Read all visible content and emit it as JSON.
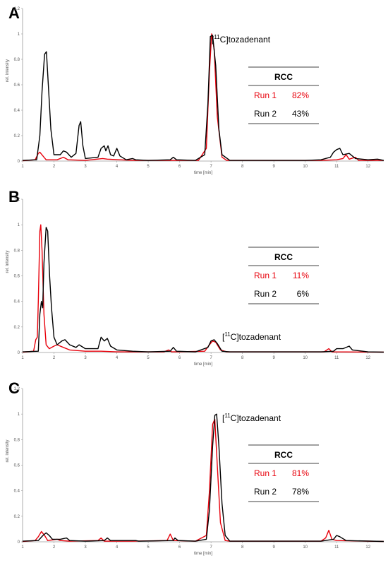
{
  "colors": {
    "run1": "#e8000b",
    "run2": "#000000",
    "axis": "#9a9a9a"
  },
  "chart_data": [
    {
      "type": "line",
      "panel": "A",
      "xlabel": "time [min]",
      "ylabel": "rel. intensity",
      "xlim": [
        1,
        12.5
      ],
      "ylim": [
        0,
        1.2
      ],
      "xticks": [
        1,
        2,
        3,
        4,
        5,
        6,
        7,
        8,
        9,
        10,
        11,
        12
      ],
      "yticks": [
        0,
        0.2,
        0.4,
        0.6,
        0.8,
        1,
        1.2
      ],
      "annotation": {
        "pre": "[",
        "sup": "11",
        "post": "C]tozadenant"
      },
      "table": {
        "header": "RCC",
        "rows": [
          {
            "label": "Run 1",
            "value": "82%"
          },
          {
            "label": "Run 2",
            "value": "43%"
          }
        ]
      },
      "series": [
        {
          "points": [
            [
              1,
              0.003
            ],
            [
              1.4,
              0.01
            ],
            [
              1.5,
              0.06
            ],
            [
              1.55,
              0.07
            ],
            [
              1.65,
              0.04
            ],
            [
              1.75,
              0.01
            ],
            [
              2.1,
              0.01
            ],
            [
              2.3,
              0.03
            ],
            [
              2.45,
              0.01
            ],
            [
              3.0,
              0.005
            ],
            [
              3.55,
              0.02
            ],
            [
              3.7,
              0.015
            ],
            [
              4.5,
              0.005
            ],
            [
              5.0,
              0.005
            ],
            [
              6.6,
              0.005
            ],
            [
              6.85,
              0.1
            ],
            [
              6.95,
              0.7
            ],
            [
              7.02,
              1.0
            ],
            [
              7.1,
              0.88
            ],
            [
              7.2,
              0.35
            ],
            [
              7.35,
              0.03
            ],
            [
              7.5,
              0.005
            ],
            [
              10.5,
              0.005
            ],
            [
              11.0,
              0.01
            ],
            [
              11.2,
              0.02
            ],
            [
              11.3,
              0.05
            ],
            [
              11.4,
              0.015
            ],
            [
              11.6,
              0.03
            ],
            [
              11.7,
              0.005
            ],
            [
              12.5,
              0.005
            ]
          ]
        },
        {
          "points": [
            [
              1,
              0.005
            ],
            [
              1.45,
              0.01
            ],
            [
              1.55,
              0.2
            ],
            [
              1.62,
              0.55
            ],
            [
              1.7,
              0.84
            ],
            [
              1.76,
              0.86
            ],
            [
              1.82,
              0.6
            ],
            [
              1.9,
              0.25
            ],
            [
              2.0,
              0.05
            ],
            [
              2.2,
              0.05
            ],
            [
              2.3,
              0.08
            ],
            [
              2.4,
              0.07
            ],
            [
              2.55,
              0.03
            ],
            [
              2.7,
              0.06
            ],
            [
              2.8,
              0.28
            ],
            [
              2.85,
              0.31
            ],
            [
              2.92,
              0.12
            ],
            [
              3.0,
              0.02
            ],
            [
              3.4,
              0.03
            ],
            [
              3.5,
              0.1
            ],
            [
              3.6,
              0.12
            ],
            [
              3.65,
              0.08
            ],
            [
              3.72,
              0.12
            ],
            [
              3.8,
              0.05
            ],
            [
              3.9,
              0.04
            ],
            [
              4.0,
              0.1
            ],
            [
              4.1,
              0.04
            ],
            [
              4.3,
              0.01
            ],
            [
              4.5,
              0.02
            ],
            [
              4.6,
              0.01
            ],
            [
              5.0,
              0.005
            ],
            [
              5.7,
              0.01
            ],
            [
              5.8,
              0.03
            ],
            [
              5.9,
              0.01
            ],
            [
              6.5,
              0.005
            ],
            [
              6.8,
              0.05
            ],
            [
              6.9,
              0.45
            ],
            [
              6.98,
              0.98
            ],
            [
              7.05,
              0.99
            ],
            [
              7.15,
              0.75
            ],
            [
              7.25,
              0.25
            ],
            [
              7.35,
              0.05
            ],
            [
              7.6,
              0.005
            ],
            [
              9.0,
              0.005
            ],
            [
              10.0,
              0.005
            ],
            [
              10.5,
              0.01
            ],
            [
              10.8,
              0.03
            ],
            [
              10.9,
              0.07
            ],
            [
              11.0,
              0.09
            ],
            [
              11.1,
              0.1
            ],
            [
              11.2,
              0.05
            ],
            [
              11.4,
              0.06
            ],
            [
              11.6,
              0.02
            ],
            [
              12.0,
              0.01
            ],
            [
              12.3,
              0.015
            ],
            [
              12.5,
              0.005
            ]
          ]
        }
      ]
    },
    {
      "type": "line",
      "panel": "B",
      "xlabel": "time [min]",
      "ylabel": "rel. intensity",
      "xlim": [
        1,
        12.5
      ],
      "ylim": [
        0,
        1.2
      ],
      "xticks": [
        1,
        2,
        3,
        4,
        5,
        6,
        7,
        8,
        9,
        10,
        11,
        12
      ],
      "yticks": [
        0,
        0.2,
        0.4,
        0.6,
        0.8,
        1,
        1.2
      ],
      "annotation": {
        "pre": "[",
        "sup": "11",
        "post": "C]tozadenant"
      },
      "table": {
        "header": "RCC",
        "rows": [
          {
            "label": "Run 1",
            "value": "11%"
          },
          {
            "label": "Run 2",
            "value": "6%"
          }
        ]
      },
      "series": [
        {
          "points": [
            [
              1,
              0.003
            ],
            [
              1.35,
              0.01
            ],
            [
              1.42,
              0.1
            ],
            [
              1.47,
              0.12
            ],
            [
              1.5,
              0.4
            ],
            [
              1.55,
              0.95
            ],
            [
              1.58,
              1.0
            ],
            [
              1.62,
              0.8
            ],
            [
              1.68,
              0.3
            ],
            [
              1.75,
              0.06
            ],
            [
              1.85,
              0.03
            ],
            [
              2.0,
              0.05
            ],
            [
              2.1,
              0.06
            ],
            [
              2.3,
              0.04
            ],
            [
              2.5,
              0.02
            ],
            [
              3.0,
              0.01
            ],
            [
              3.5,
              0.01
            ],
            [
              4.0,
              0.005
            ],
            [
              5.5,
              0.005
            ],
            [
              5.65,
              0.02
            ],
            [
              5.75,
              0.005
            ],
            [
              6.8,
              0.01
            ],
            [
              6.95,
              0.06
            ],
            [
              7.05,
              0.09
            ],
            [
              7.15,
              0.08
            ],
            [
              7.3,
              0.02
            ],
            [
              7.5,
              0.005
            ],
            [
              10.6,
              0.005
            ],
            [
              10.75,
              0.03
            ],
            [
              10.85,
              0.005
            ],
            [
              12.5,
              0.003
            ]
          ]
        },
        {
          "points": [
            [
              1,
              0.005
            ],
            [
              1.5,
              0.01
            ],
            [
              1.55,
              0.3
            ],
            [
              1.6,
              0.4
            ],
            [
              1.64,
              0.35
            ],
            [
              1.68,
              0.7
            ],
            [
              1.75,
              0.98
            ],
            [
              1.8,
              0.95
            ],
            [
              1.86,
              0.6
            ],
            [
              1.92,
              0.35
            ],
            [
              2.0,
              0.12
            ],
            [
              2.1,
              0.06
            ],
            [
              2.25,
              0.09
            ],
            [
              2.35,
              0.1
            ],
            [
              2.5,
              0.06
            ],
            [
              2.7,
              0.04
            ],
            [
              2.8,
              0.06
            ],
            [
              3.0,
              0.03
            ],
            [
              3.4,
              0.03
            ],
            [
              3.5,
              0.12
            ],
            [
              3.6,
              0.09
            ],
            [
              3.7,
              0.11
            ],
            [
              3.8,
              0.05
            ],
            [
              4.0,
              0.02
            ],
            [
              4.5,
              0.01
            ],
            [
              5.0,
              0.005
            ],
            [
              5.7,
              0.01
            ],
            [
              5.8,
              0.04
            ],
            [
              5.9,
              0.01
            ],
            [
              6.5,
              0.005
            ],
            [
              6.9,
              0.04
            ],
            [
              7.0,
              0.09
            ],
            [
              7.1,
              0.1
            ],
            [
              7.2,
              0.07
            ],
            [
              7.35,
              0.01
            ],
            [
              7.6,
              0.005
            ],
            [
              10.5,
              0.005
            ],
            [
              10.9,
              0.01
            ],
            [
              11.0,
              0.03
            ],
            [
              11.2,
              0.03
            ],
            [
              11.4,
              0.05
            ],
            [
              11.5,
              0.02
            ],
            [
              12.0,
              0.005
            ],
            [
              12.5,
              0.003
            ]
          ]
        }
      ]
    },
    {
      "type": "line",
      "panel": "C",
      "xlabel": "time [min]",
      "ylabel": "rel. intensity",
      "xlim": [
        1,
        12.5
      ],
      "ylim": [
        0,
        1.2
      ],
      "xticks": [
        1,
        2,
        3,
        4,
        5,
        6,
        7,
        8,
        9,
        10,
        11,
        12
      ],
      "yticks": [
        0,
        0.2,
        0.4,
        0.6,
        0.8,
        1,
        1.2
      ],
      "annotation": {
        "pre": "[",
        "sup": "11",
        "post": "C]tozadenant"
      },
      "table": {
        "header": "RCC",
        "rows": [
          {
            "label": "Run 1",
            "value": "81%"
          },
          {
            "label": "Run 2",
            "value": "78%"
          }
        ]
      },
      "series": [
        {
          "points": [
            [
              1,
              0.003
            ],
            [
              1.4,
              0.01
            ],
            [
              1.5,
              0.04
            ],
            [
              1.6,
              0.08
            ],
            [
              1.7,
              0.05
            ],
            [
              1.8,
              0.01
            ],
            [
              2.1,
              0.02
            ],
            [
              2.2,
              0.01
            ],
            [
              2.5,
              0.005
            ],
            [
              3.4,
              0.01
            ],
            [
              3.5,
              0.03
            ],
            [
              3.6,
              0.005
            ],
            [
              4.5,
              0.005
            ],
            [
              5.6,
              0.01
            ],
            [
              5.7,
              0.06
            ],
            [
              5.8,
              0.01
            ],
            [
              6.5,
              0.005
            ],
            [
              6.85,
              0.05
            ],
            [
              6.95,
              0.4
            ],
            [
              7.05,
              0.92
            ],
            [
              7.12,
              0.96
            ],
            [
              7.2,
              0.6
            ],
            [
              7.3,
              0.15
            ],
            [
              7.45,
              0.01
            ],
            [
              7.6,
              0.005
            ],
            [
              10.5,
              0.005
            ],
            [
              10.65,
              0.03
            ],
            [
              10.75,
              0.09
            ],
            [
              10.85,
              0.02
            ],
            [
              11.0,
              0.01
            ],
            [
              12.5,
              0.003
            ]
          ]
        },
        {
          "points": [
            [
              1,
              0.005
            ],
            [
              1.5,
              0.01
            ],
            [
              1.65,
              0.05
            ],
            [
              1.75,
              0.07
            ],
            [
              1.85,
              0.05
            ],
            [
              1.95,
              0.02
            ],
            [
              2.2,
              0.02
            ],
            [
              2.4,
              0.03
            ],
            [
              2.5,
              0.01
            ],
            [
              3.0,
              0.005
            ],
            [
              3.6,
              0.01
            ],
            [
              3.7,
              0.03
            ],
            [
              3.8,
              0.01
            ],
            [
              4.6,
              0.01
            ],
            [
              4.7,
              0.005
            ],
            [
              5.8,
              0.01
            ],
            [
              5.85,
              0.03
            ],
            [
              5.95,
              0.01
            ],
            [
              6.5,
              0.005
            ],
            [
              6.85,
              0.02
            ],
            [
              6.95,
              0.25
            ],
            [
              7.05,
              0.75
            ],
            [
              7.12,
              0.99
            ],
            [
              7.18,
              1.0
            ],
            [
              7.25,
              0.75
            ],
            [
              7.35,
              0.3
            ],
            [
              7.45,
              0.05
            ],
            [
              7.6,
              0.005
            ],
            [
              10.5,
              0.005
            ],
            [
              10.9,
              0.02
            ],
            [
              11.0,
              0.05
            ],
            [
              11.1,
              0.04
            ],
            [
              11.3,
              0.01
            ],
            [
              12.5,
              0.003
            ]
          ]
        }
      ]
    }
  ]
}
